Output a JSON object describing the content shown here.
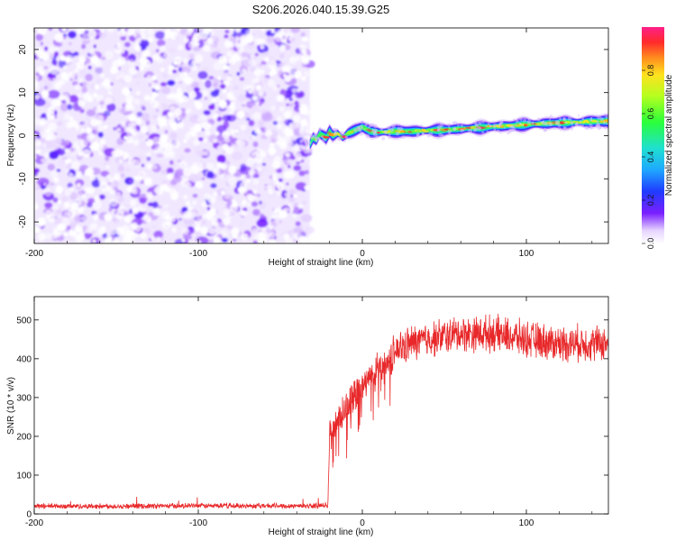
{
  "title": "S206.2026.040.15.39.G25",
  "chart_data": [
    {
      "type": "heatmap",
      "name": "spectrogram",
      "xlabel": "Height of straight line (km)",
      "ylabel": "Frequency (Hz)",
      "xlim": [
        -200,
        150
      ],
      "ylim": [
        -25,
        25
      ],
      "xticks": [
        -200,
        -100,
        0,
        100
      ],
      "xtick_labels": [
        "-200",
        "-100",
        "0",
        "100"
      ],
      "yticks": [
        -20,
        -10,
        0,
        10,
        20
      ],
      "ytick_labels": [
        "-20",
        "-10",
        "0",
        "10",
        "20"
      ],
      "noise_region_x": [
        -200,
        -32
      ],
      "signal_region_x": [
        -32,
        150
      ],
      "signal_ridge": {
        "x": [
          -32,
          -30,
          -28,
          -26,
          -24,
          -22,
          -20,
          -18,
          -15,
          -12,
          -9,
          -6,
          -3,
          0,
          5,
          10,
          20,
          30,
          40,
          50,
          60,
          70,
          80,
          90,
          100,
          110,
          120,
          130,
          140,
          150
        ],
        "freq_hz": [
          -2,
          -0.5,
          -1,
          0.5,
          0,
          -0.5,
          1,
          0,
          0.5,
          -0.5,
          0.5,
          1,
          1.5,
          2,
          1,
          0.8,
          1,
          1,
          1.2,
          1.3,
          1.6,
          1.8,
          2.1,
          2.3,
          2.6,
          2.8,
          3,
          3.1,
          3.3,
          3.4
        ]
      },
      "colorbar": {
        "label": "Normalized spectral amplitude",
        "range": [
          0,
          1
        ],
        "ticks": [
          0.0,
          0.2,
          0.4,
          0.6,
          0.8
        ],
        "tick_labels": [
          "0.0",
          "0.2",
          "0.4",
          "0.6",
          "0.8"
        ]
      }
    },
    {
      "type": "line",
      "name": "snr",
      "xlabel": "Height of straight line (km)",
      "ylabel": "SNR (10 * v/v)",
      "xlim": [
        -200,
        150
      ],
      "ylim": [
        0,
        560
      ],
      "xticks": [
        -200,
        -100,
        0,
        100
      ],
      "xtick_labels": [
        "-200",
        "-100",
        "0",
        "100"
      ],
      "yticks": [
        0,
        100,
        200,
        300,
        400,
        500
      ],
      "ytick_labels": [
        "0",
        "100",
        "200",
        "300",
        "400",
        "500"
      ],
      "series": [
        {
          "name": "SNR",
          "color": "#e8282a",
          "trend_x": [
            -200,
            -180,
            -150,
            -100,
            -50,
            -21,
            -20,
            -15,
            -10,
            -5,
            0,
            5,
            10,
            15,
            20,
            30,
            40,
            60,
            80,
            100,
            120,
            150
          ],
          "trend_y": [
            20,
            20,
            20,
            21,
            21,
            21,
            200,
            240,
            270,
            300,
            330,
            350,
            370,
            385,
            420,
            440,
            450,
            465,
            465,
            450,
            440,
            440
          ],
          "noise_amplitude": 55,
          "baseline_noise_amplitude": 8
        }
      ]
    }
  ]
}
